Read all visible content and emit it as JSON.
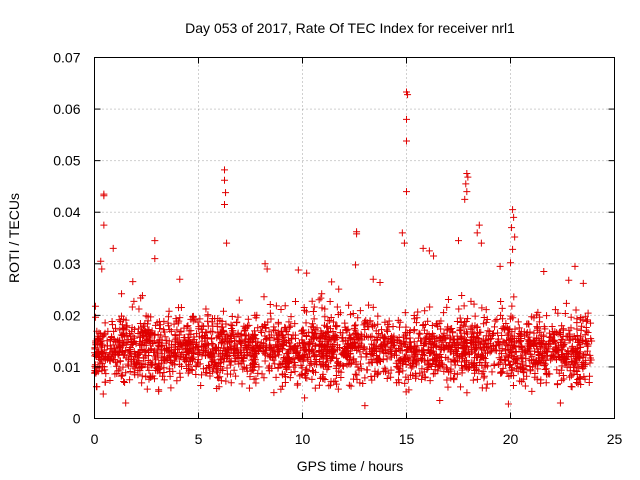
{
  "chart_data": {
    "type": "scatter",
    "title": "Day 053 of 2017, Rate Of TEC Index for receiver nrl1",
    "xlabel": "GPS time / hours",
    "ylabel": "ROTI / TECUs",
    "xlim": [
      0,
      25
    ],
    "ylim": [
      0,
      0.07
    ],
    "xticks": [
      0,
      5,
      10,
      15,
      20,
      25
    ],
    "yticks": [
      0,
      0.01,
      0.02,
      0.03,
      0.04,
      0.05,
      0.06,
      0.07
    ],
    "ytick_labels": [
      "0",
      "0.01",
      "0.02",
      "0.03",
      "0.04",
      "0.05",
      "0.06",
      "0.07"
    ],
    "grid": true,
    "marker": "+",
    "color": "#e00000",
    "x_range_of_data": [
      0,
      23.9
    ],
    "typical_band": [
      0.004,
      0.02
    ],
    "notable_points": [
      {
        "x": 0.45,
        "y": 0.0435
      },
      {
        "x": 0.45,
        "y": 0.0432
      },
      {
        "x": 0.45,
        "y": 0.0375
      },
      {
        "x": 0.9,
        "y": 0.033
      },
      {
        "x": 2.9,
        "y": 0.0345
      },
      {
        "x": 2.9,
        "y": 0.031
      },
      {
        "x": 6.25,
        "y": 0.0482
      },
      {
        "x": 6.25,
        "y": 0.0462
      },
      {
        "x": 6.3,
        "y": 0.0438
      },
      {
        "x": 6.25,
        "y": 0.0415
      },
      {
        "x": 6.35,
        "y": 0.034
      },
      {
        "x": 12.6,
        "y": 0.0362
      },
      {
        "x": 12.6,
        "y": 0.0358
      },
      {
        "x": 12.55,
        "y": 0.0298
      },
      {
        "x": 15.0,
        "y": 0.0633
      },
      {
        "x": 15.05,
        "y": 0.0628
      },
      {
        "x": 15.0,
        "y": 0.058
      },
      {
        "x": 15.0,
        "y": 0.0538
      },
      {
        "x": 15.0,
        "y": 0.044
      },
      {
        "x": 14.8,
        "y": 0.036
      },
      {
        "x": 14.9,
        "y": 0.034
      },
      {
        "x": 17.9,
        "y": 0.0475
      },
      {
        "x": 17.95,
        "y": 0.0468
      },
      {
        "x": 17.85,
        "y": 0.0455
      },
      {
        "x": 17.9,
        "y": 0.044
      },
      {
        "x": 17.8,
        "y": 0.0425
      },
      {
        "x": 18.5,
        "y": 0.0375
      },
      {
        "x": 18.4,
        "y": 0.036
      },
      {
        "x": 18.6,
        "y": 0.034
      },
      {
        "x": 20.1,
        "y": 0.0405
      },
      {
        "x": 20.15,
        "y": 0.039
      },
      {
        "x": 20.05,
        "y": 0.037
      },
      {
        "x": 20.2,
        "y": 0.0352
      },
      {
        "x": 20.1,
        "y": 0.0328
      },
      {
        "x": 20.0,
        "y": 0.0302
      },
      {
        "x": 19.5,
        "y": 0.0295
      },
      {
        "x": 17.5,
        "y": 0.0345
      },
      {
        "x": 16.1,
        "y": 0.0325
      },
      {
        "x": 16.3,
        "y": 0.0315
      },
      {
        "x": 15.8,
        "y": 0.033
      },
      {
        "x": 13.4,
        "y": 0.027
      },
      {
        "x": 9.8,
        "y": 0.0288
      },
      {
        "x": 10.2,
        "y": 0.0282
      },
      {
        "x": 8.2,
        "y": 0.03
      },
      {
        "x": 8.3,
        "y": 0.029
      },
      {
        "x": 23.1,
        "y": 0.0295
      },
      {
        "x": 23.5,
        "y": 0.0262
      },
      {
        "x": 21.6,
        "y": 0.0285
      },
      {
        "x": 0.3,
        "y": 0.0305
      },
      {
        "x": 0.35,
        "y": 0.029
      },
      {
        "x": 1.3,
        "y": 0.0242
      },
      {
        "x": 4.1,
        "y": 0.027
      },
      {
        "x": 11.4,
        "y": 0.0265
      },
      {
        "x": 22.8,
        "y": 0.0268
      },
      {
        "x": 0.0,
        "y": 0.0088
      },
      {
        "x": 23.8,
        "y": 0.0082
      },
      {
        "x": 10.1,
        "y": 0.004
      },
      {
        "x": 1.5,
        "y": 0.003
      },
      {
        "x": 13.0,
        "y": 0.0025
      },
      {
        "x": 16.6,
        "y": 0.0035
      },
      {
        "x": 19.9,
        "y": 0.0028
      },
      {
        "x": 22.4,
        "y": 0.003
      }
    ]
  }
}
